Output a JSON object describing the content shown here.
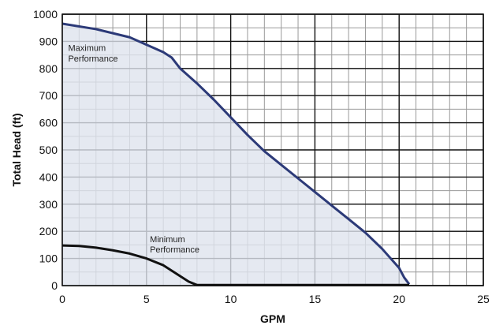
{
  "chart_data": {
    "type": "area",
    "xlabel": "GPM",
    "ylabel": "Total Head (ft)",
    "xlim": [
      0,
      25
    ],
    "ylim": [
      0,
      1000
    ],
    "x_ticks": [
      "0",
      "5",
      "10",
      "15",
      "20",
      "25"
    ],
    "y_ticks": [
      "0",
      "100",
      "200",
      "300",
      "400",
      "500",
      "600",
      "700",
      "800",
      "900",
      "1000"
    ],
    "grid": true,
    "series": [
      {
        "name": "Maximum Performance",
        "color": "#2c3a78",
        "fill": "#dfe3ee",
        "x": [
          0,
          2,
          4,
          6,
          6.5,
          7,
          8,
          9,
          10,
          11,
          12,
          13,
          14,
          15,
          16,
          17,
          18,
          19,
          20,
          20.3,
          20.6
        ],
        "y": [
          965,
          945,
          915,
          860,
          840,
          800,
          745,
          685,
          620,
          555,
          495,
          445,
          395,
          345,
          295,
          245,
          195,
          135,
          65,
          30,
          5
        ]
      },
      {
        "name": "Minimum Performance",
        "color": "#111111",
        "x": [
          0,
          1,
          2,
          3,
          4,
          5,
          6,
          6.5,
          7,
          7.5,
          8,
          20.6
        ],
        "y": [
          148,
          146,
          140,
          130,
          118,
          100,
          75,
          55,
          35,
          15,
          2,
          2
        ]
      }
    ],
    "annotations": [
      {
        "text": "Maximum",
        "x": 0.35,
        "y": 865
      },
      {
        "text": "Performance",
        "x": 0.35,
        "y": 825
      },
      {
        "text": "Minimum",
        "x": 5.2,
        "y": 160
      },
      {
        "text": "Performance",
        "x": 5.2,
        "y": 122
      }
    ]
  }
}
